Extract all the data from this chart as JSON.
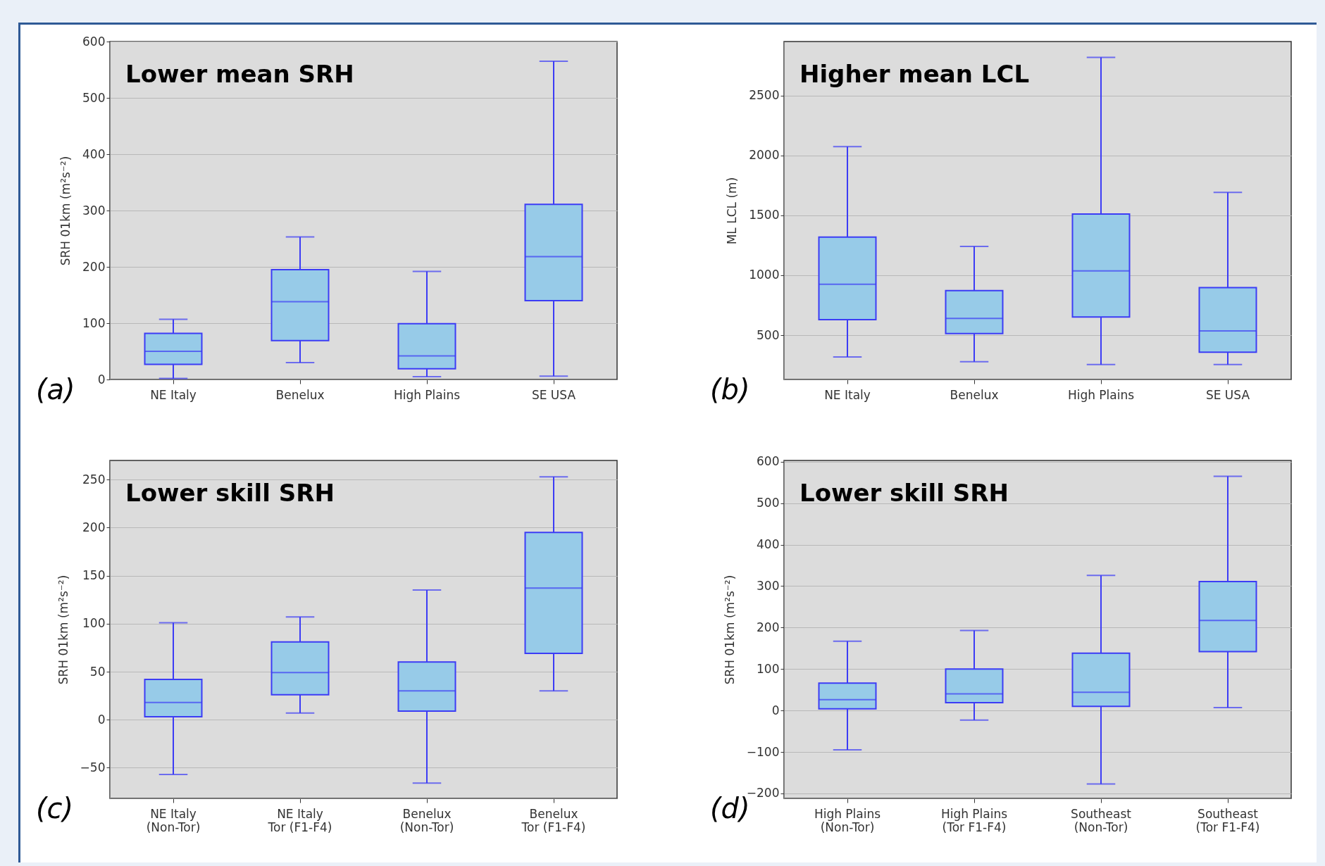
{
  "chart_data": [
    {
      "type": "box",
      "title": "Lower mean SRH",
      "ylabel": "SRH 01km (m²s⁻²)",
      "annotations": [
        "(a)"
      ],
      "categories": [
        "NE Italy",
        "Benelux",
        "High Plains",
        "SE USA"
      ],
      "ylim": [
        0,
        600
      ],
      "yticks": [
        0,
        100,
        200,
        300,
        400,
        500,
        600
      ],
      "grid": "y",
      "series": [
        {
          "color": "#97cbe8",
          "boxes": [
            {
              "low": 2,
              "q1": 27,
              "median": 50,
              "q3": 82,
              "high": 107
            },
            {
              "low": 30,
              "q1": 69,
              "median": 138,
              "q3": 195,
              "high": 253
            },
            {
              "low": 5,
              "q1": 19,
              "median": 42,
              "q3": 99,
              "high": 192
            },
            {
              "low": 6,
              "q1": 140,
              "median": 218,
              "q3": 311,
              "high": 565
            }
          ]
        }
      ]
    },
    {
      "type": "box",
      "title": "Higher mean LCL",
      "ylabel": "ML LCL (m)",
      "annotations": [
        "(b)"
      ],
      "categories": [
        "NE Italy",
        "Benelux",
        "High Plains",
        "SE USA"
      ],
      "ylim": [
        130,
        2950
      ],
      "yticks": [
        500,
        1000,
        1500,
        2000,
        2500
      ],
      "grid": "y",
      "series": [
        {
          "color": "#97cbe8",
          "boxes": [
            {
              "low": 318,
              "q1": 629,
              "median": 924,
              "q3": 1318,
              "high": 2073
            },
            {
              "low": 278,
              "q1": 513,
              "median": 639,
              "q3": 871,
              "high": 1241
            },
            {
              "low": 255,
              "q1": 652,
              "median": 1036,
              "q3": 1510,
              "high": 2818
            },
            {
              "low": 255,
              "q1": 358,
              "median": 536,
              "q3": 897,
              "high": 1692
            }
          ]
        }
      ]
    },
    {
      "type": "box",
      "title": "Lower skill SRH",
      "ylabel": "SRH 01km (m²s⁻²)",
      "annotations": [
        "(c)"
      ],
      "categories": [
        "NE Italy\n(Non-Tor)",
        "NE Italy\nTor (F1-F4)",
        "Benelux\n(Non-Tor)",
        "Benelux\nTor (F1-F4)"
      ],
      "ylim": [
        -82,
        270
      ],
      "yticks": [
        -50,
        0,
        50,
        100,
        150,
        200,
        250
      ],
      "grid": "y",
      "series": [
        {
          "color": "#97cbe8",
          "boxes": [
            {
              "low": -57,
              "q1": 3,
              "median": 18,
              "q3": 42,
              "high": 101
            },
            {
              "low": 7,
              "q1": 26,
              "median": 49,
              "q3": 81,
              "high": 107
            },
            {
              "low": -66,
              "q1": 9,
              "median": 30,
              "q3": 60,
              "high": 135
            },
            {
              "low": 30,
              "q1": 69,
              "median": 137,
              "q3": 195,
              "high": 253
            }
          ]
        }
      ]
    },
    {
      "type": "box",
      "title": "Lower skill SRH",
      "ylabel": "SRH 01km (m²s⁻²)",
      "annotations": [
        "(d)"
      ],
      "categories": [
        "High Plains\n(Non-Tor)",
        "High Plains\n(Tor F1-F4)",
        "Southeast\n(Non-Tor)",
        "Southeast\n(Tor F1-F4)"
      ],
      "ylim": [
        -212,
        603
      ],
      "yticks": [
        -200,
        -100,
        0,
        100,
        200,
        300,
        400,
        500,
        600
      ],
      "grid": "y",
      "series": [
        {
          "color": "#97cbe8",
          "boxes": [
            {
              "low": -95,
              "q1": 4,
              "median": 26,
              "q3": 66,
              "high": 167
            },
            {
              "low": -23,
              "q1": 19,
              "median": 40,
              "q3": 100,
              "high": 193
            },
            {
              "low": -177,
              "q1": 10,
              "median": 44,
              "q3": 138,
              "high": 326
            },
            {
              "low": 7,
              "q1": 142,
              "median": 217,
              "q3": 311,
              "high": 565
            }
          ]
        }
      ]
    }
  ]
}
